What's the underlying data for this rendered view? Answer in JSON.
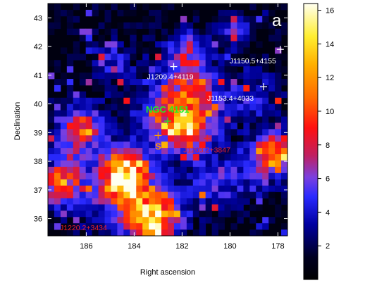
{
  "map": {
    "panel_label": "a",
    "xlabel": "Right ascension",
    "ylabel": "Declination",
    "x_ticks": [
      "186",
      "184",
      "182",
      "180",
      "178"
    ],
    "y_ticks": [
      "43",
      "42",
      "41",
      "40",
      "39",
      "38",
      "37",
      "36"
    ],
    "x_range_deg": [
      187.6,
      177.6
    ],
    "y_range_deg": [
      35.4,
      43.5
    ],
    "colorbar": {
      "ticks": [
        "2",
        "4",
        "6",
        "8",
        "10",
        "12",
        "14",
        "16"
      ],
      "range": [
        0,
        16.4
      ],
      "colormap": "black-blue-red-yellow-white"
    },
    "sources": [
      {
        "name": "J1150.5+4155",
        "color": "#ffffff",
        "ra": 177.9,
        "dec": 41.9
      },
      {
        "name": "J1209.4+4119",
        "color": "#ffffff",
        "ra": 182.35,
        "dec": 41.3
      },
      {
        "name": "J1153.4+4033",
        "color": "#ffffff",
        "ra": 178.6,
        "dec": 40.6
      },
      {
        "name": "NGC 4151",
        "color": "#22ee22",
        "ra": 182.6,
        "dec": 39.4
      },
      {
        "name": "S",
        "color": "#ff9900",
        "ra": 183.0,
        "dec": 38.9
      },
      {
        "name": "J1203.2+3847",
        "color": "#ee2222",
        "ra": 180.95,
        "dec": 38.8
      },
      {
        "name": "J1220.2+3434",
        "color": "#ee2222",
        "ra": 185.1,
        "dec": 35.7
      }
    ]
  }
}
